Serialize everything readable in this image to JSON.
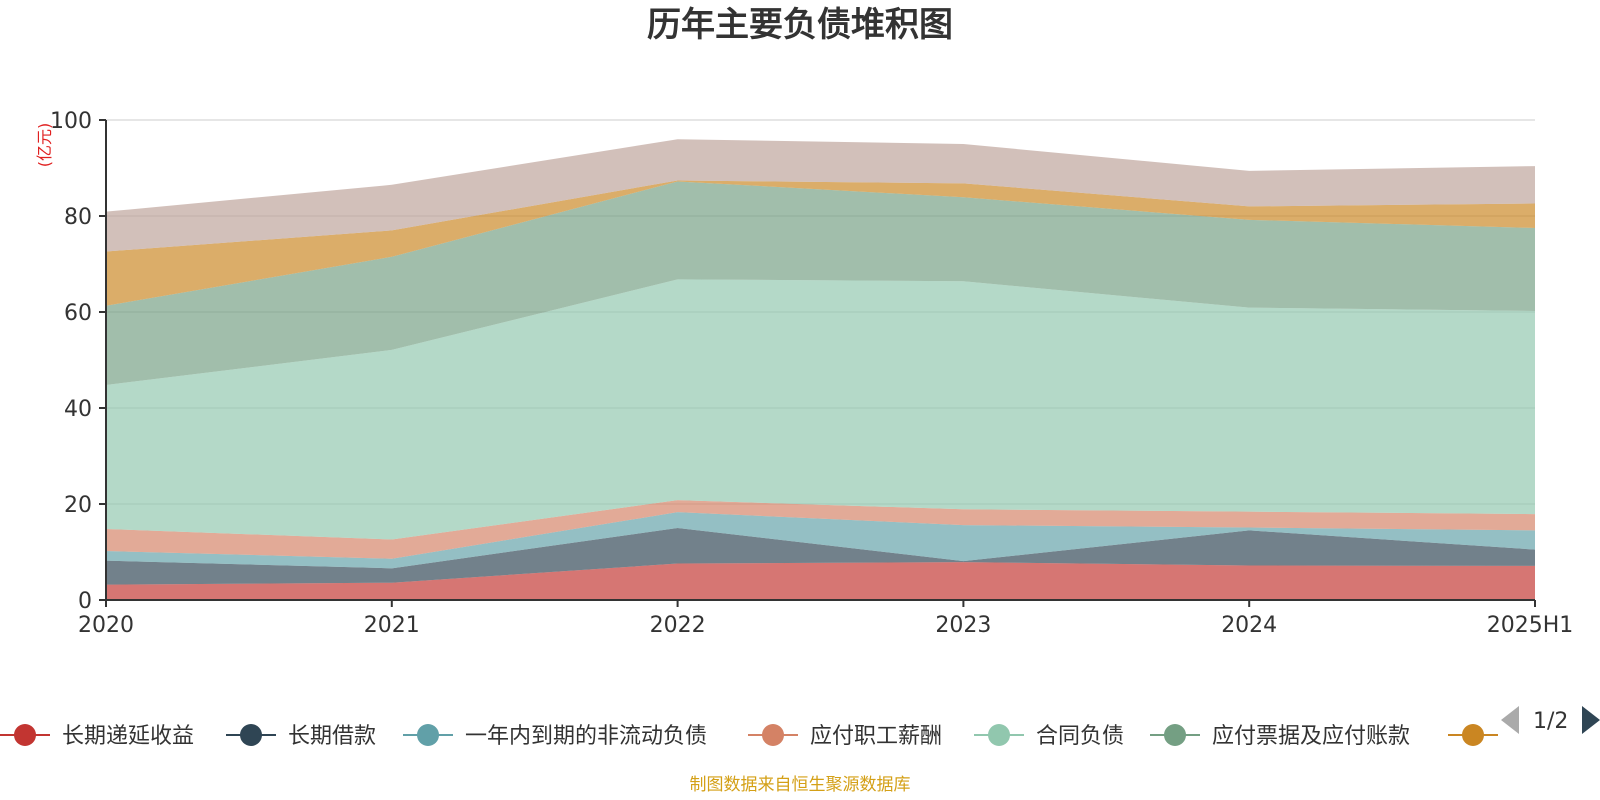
{
  "chart_data": {
    "type": "area",
    "stacked": true,
    "title": "历年主要负债堆积图",
    "unit_label": "(亿元)",
    "x": [
      "2020",
      "2021",
      "2022",
      "2023",
      "2024",
      "2025H1"
    ],
    "ylim": [
      0,
      100
    ],
    "yticks": [
      "0",
      "20",
      "40",
      "60",
      "80",
      "100"
    ],
    "grid": true,
    "series": [
      {
        "name": "长期递延收益",
        "color": "#c23531",
        "values": [
          3.2,
          3.6,
          7.6,
          7.9,
          7.2,
          7.1
        ]
      },
      {
        "name": "长期借款",
        "color": "#2f4554",
        "values": [
          5.0,
          3.0,
          7.4,
          0.2,
          7.3,
          3.4
        ]
      },
      {
        "name": "一年内到期的非流动负债",
        "color": "#61a0a8",
        "values": [
          2.0,
          2.0,
          3.3,
          7.5,
          0.6,
          4.0
        ]
      },
      {
        "name": "应付职工薪酬",
        "color": "#d48265",
        "values": [
          4.6,
          4.0,
          2.5,
          3.3,
          3.3,
          3.4
        ]
      },
      {
        "name": "合同负债",
        "color": "#91c7ae",
        "values": [
          30.0,
          39.5,
          46.0,
          47.5,
          42.5,
          42.3
        ]
      },
      {
        "name": "应付票据及应付账款",
        "color": "#749f83",
        "values": [
          16.5,
          19.4,
          20.4,
          17.5,
          18.3,
          17.3
        ]
      },
      {
        "name": "",
        "color": "#ca8622",
        "values": [
          11.3,
          5.5,
          0.2,
          2.9,
          2.8,
          5.1
        ]
      },
      {
        "name": "",
        "color": "#bda29a",
        "values": [
          8.3,
          9.5,
          8.6,
          8.2,
          7.4,
          7.8
        ]
      }
    ]
  },
  "legend": {
    "page_indicator": "1/2"
  },
  "footer": {
    "source": "制图数据来自恒生聚源数据库"
  }
}
